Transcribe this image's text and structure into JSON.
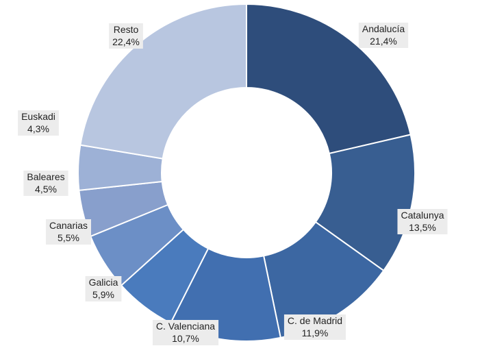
{
  "chart_data": {
    "type": "pie",
    "variant": "donut",
    "title": "",
    "slices": [
      {
        "name": "Andalucía",
        "value": 21.4,
        "label": "21,4%",
        "color": "#2e4d7b"
      },
      {
        "name": "Catalunya",
        "value": 13.5,
        "label": "13,5%",
        "color": "#385e91"
      },
      {
        "name": "C. de Madrid",
        "value": 11.9,
        "label": "11,9%",
        "color": "#3c67a2"
      },
      {
        "name": "C. Valenciana",
        "value": 10.7,
        "label": "10,7%",
        "color": "#416fb0"
      },
      {
        "name": "Galicia",
        "value": 5.9,
        "label": "5,9%",
        "color": "#4a7bbd"
      },
      {
        "name": "Canarias",
        "value": 5.5,
        "label": "5,5%",
        "color": "#6c8fc6"
      },
      {
        "name": "Baleares",
        "value": 4.5,
        "label": "4,5%",
        "color": "#889fcc"
      },
      {
        "name": "Euskadi",
        "value": 4.3,
        "label": "4,3%",
        "color": "#9db1d6"
      },
      {
        "name": "Resto",
        "value": 22.4,
        "label": "22,4%",
        "color": "#b8c6e0"
      }
    ],
    "legend": "none"
  }
}
